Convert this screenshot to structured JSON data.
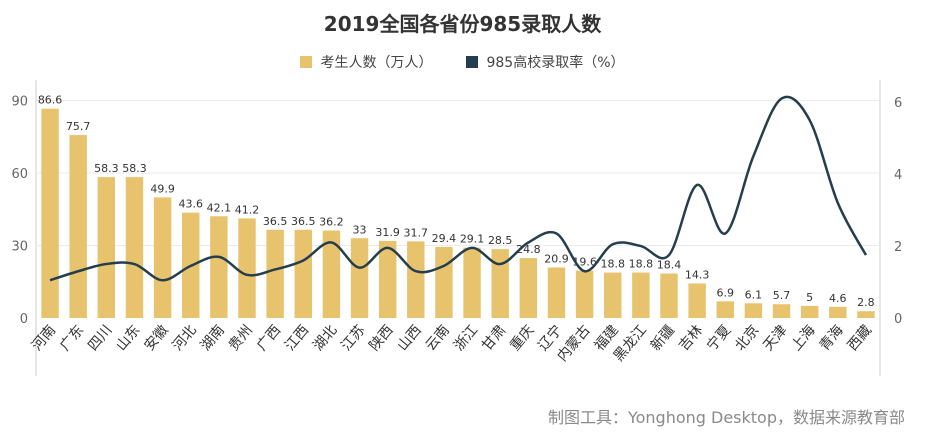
{
  "colors": {
    "bar": "#E8C36E",
    "line": "#253E4D",
    "text": "#333333",
    "axis": "#666666",
    "grid": "#EBEBEB"
  },
  "source": "制图工具：Yonghong Desktop，数据来源教育部",
  "chart_data": {
    "type": "bar",
    "title": "2019全国各省份985录取人数",
    "legend_placement": "top",
    "categories": [
      "河南",
      "广东",
      "四川",
      "山东",
      "安徽",
      "河北",
      "湖南",
      "贵州",
      "广西",
      "江西",
      "湖北",
      "江苏",
      "陕西",
      "山西",
      "云南",
      "浙江",
      "甘肃",
      "重庆",
      "辽宁",
      "内蒙古",
      "福建",
      "黑龙江",
      "新疆",
      "吉林",
      "宁夏",
      "北京",
      "天津",
      "上海",
      "青海",
      "西藏"
    ],
    "series": [
      {
        "name": "考生人数（万人）",
        "type": "bar",
        "axis": "left",
        "values": [
          86.6,
          75.7,
          58.3,
          58.3,
          49.9,
          43.6,
          42.1,
          41.2,
          36.5,
          36.5,
          36.2,
          33,
          31.9,
          31.7,
          29.4,
          29.1,
          28.5,
          24.8,
          20.9,
          19.6,
          18.8,
          18.8,
          18.4,
          14.3,
          6.9,
          6.1,
          5.7,
          5,
          4.6,
          2.8
        ]
      },
      {
        "name": "985高校录取率（%）",
        "type": "line",
        "axis": "right",
        "values": [
          1.05,
          1.3,
          1.5,
          1.5,
          1.05,
          1.45,
          1.7,
          1.2,
          1.35,
          1.6,
          2.1,
          1.4,
          1.95,
          1.3,
          1.45,
          1.95,
          1.5,
          2.1,
          2.35,
          1.3,
          2.05,
          2.0,
          1.75,
          3.7,
          2.35,
          4.5,
          6.1,
          5.5,
          3.2,
          1.75
        ]
      }
    ],
    "y_left": {
      "ticks": [
        0,
        30,
        60,
        90
      ],
      "range": [
        0,
        96
      ]
    },
    "y_right": {
      "ticks": [
        0,
        2,
        4,
        6
      ],
      "range": [
        0,
        6.45
      ]
    },
    "grid": true
  }
}
